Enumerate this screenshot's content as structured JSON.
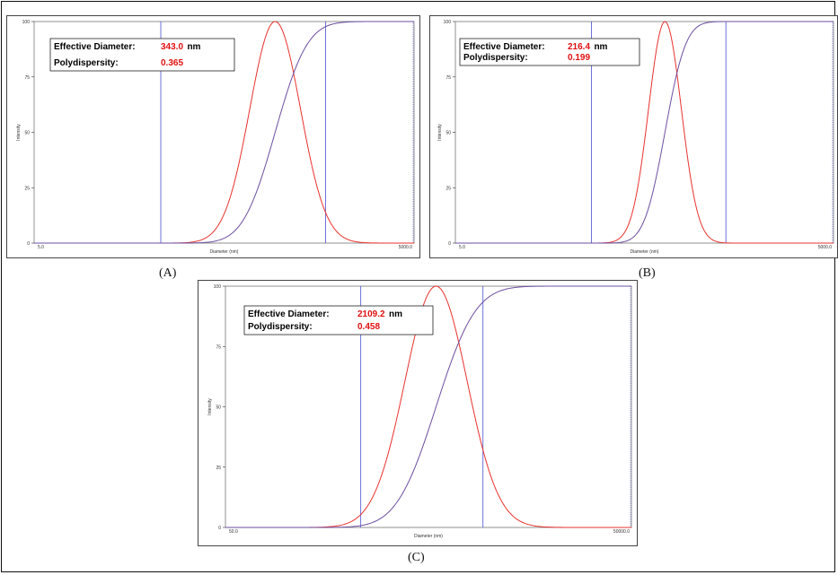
{
  "colors": {
    "distribution": "#e8322e",
    "cumulative": "#6d4fa0",
    "cursor": "#4a4fd0",
    "value_text": "#e01010"
  },
  "panels": [
    {
      "label": "(A)",
      "info": {
        "diameter_key": "Effective Diameter:",
        "diameter_value": "343.0",
        "unit": "nm",
        "pdi_key": "Polydispersity:",
        "pdi_value": "0.365"
      },
      "ylabel": "Intensity",
      "xlabel": "Diameter (nm)"
    },
    {
      "label": "(B)",
      "info": {
        "diameter_key": "Effective Diameter:",
        "diameter_value": "216.4",
        "unit": "nm",
        "pdi_key": "Polydispersity:",
        "pdi_value": "0.199"
      },
      "ylabel": "Intensity",
      "xlabel": "Diameter (nm)"
    },
    {
      "label": "(C)",
      "info": {
        "diameter_key": "Effective Diameter:",
        "diameter_value": "2109.2",
        "unit": "nm",
        "pdi_key": "Polydispersity:",
        "pdi_value": "0.458"
      },
      "ylabel": "Intensity",
      "xlabel": "Diameter (nm)"
    }
  ],
  "chart_data": [
    {
      "type": "line",
      "log_x": true,
      "xlim": [
        5.0,
        5000.0
      ],
      "ylim": [
        0,
        100
      ],
      "x_tick_labels": [
        "5.0",
        "5000.0"
      ],
      "y_ticks": [
        0,
        25,
        50,
        75,
        100
      ],
      "cursors_x": [
        50,
        1000
      ],
      "series": [
        {
          "kind": "distribution",
          "peak_x": 400,
          "log_sigma": 0.2
        },
        {
          "kind": "cumulative",
          "mid_x": 400,
          "log_sigma": 0.2
        }
      ]
    },
    {
      "type": "line",
      "log_x": true,
      "xlim": [
        5.0,
        5000.0
      ],
      "ylim": [
        0,
        100
      ],
      "x_tick_labels": [
        "5.0",
        "5000.0"
      ],
      "y_ticks": [
        0,
        25,
        50,
        75,
        100
      ],
      "cursors_x": [
        60,
        700
      ],
      "series": [
        {
          "kind": "distribution",
          "peak_x": 230,
          "log_sigma": 0.13
        },
        {
          "kind": "cumulative",
          "mid_x": 230,
          "log_sigma": 0.13
        }
      ]
    },
    {
      "type": "line",
      "log_x": true,
      "xlim": [
        50.0,
        50000.0
      ],
      "ylim": [
        0,
        100
      ],
      "x_tick_labels": [
        "50.0",
        "50000.0"
      ],
      "y_ticks": [
        0,
        25,
        50,
        75,
        100
      ],
      "cursors_x": [
        500,
        4000
      ],
      "series": [
        {
          "kind": "distribution",
          "peak_x": 1800,
          "log_sigma": 0.23
        },
        {
          "kind": "cumulative",
          "mid_x": 1800,
          "log_sigma": 0.23
        }
      ]
    }
  ]
}
